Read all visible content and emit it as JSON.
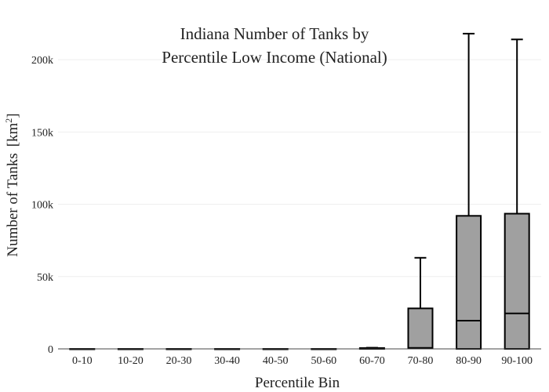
{
  "chart_data": {
    "type": "box",
    "title": "Indiana Number of Tanks by Percentile Low Income (National)",
    "title_lines": [
      "Indiana Number of Tanks by",
      "Percentile Low Income (National)"
    ],
    "xlabel": "Percentile Bin",
    "ylabel_text": "Number of Tanks",
    "ylabel_unit": "[km",
    "ylabel_unit_sup": "2",
    "ylabel_unit_close": "]",
    "ylim": [
      0,
      225000
    ],
    "yticks": [
      0,
      50000,
      100000,
      150000,
      200000
    ],
    "ytick_labels": [
      "0",
      "50k",
      "100k",
      "150k",
      "200k"
    ],
    "grid": true,
    "categories": [
      "0-10",
      "10-20",
      "20-30",
      "30-40",
      "40-50",
      "50-60",
      "60-70",
      "70-80",
      "80-90",
      "90-100"
    ],
    "boxes": [
      {
        "min": 0,
        "q1": 0,
        "median": 0,
        "q3": 0,
        "max": 0
      },
      {
        "min": 0,
        "q1": 0,
        "median": 0,
        "q3": 0,
        "max": 0
      },
      {
        "min": 0,
        "q1": 0,
        "median": 0,
        "q3": 0,
        "max": 0
      },
      {
        "min": 0,
        "q1": 0,
        "median": 0,
        "q3": 0,
        "max": 0
      },
      {
        "min": 0,
        "q1": 0,
        "median": 0,
        "q3": 0,
        "max": 0
      },
      {
        "min": 0,
        "q1": 0,
        "median": 0,
        "q3": 0,
        "max": 0
      },
      {
        "min": 0,
        "q1": 0,
        "median": 200,
        "q3": 600,
        "max": 800
      },
      {
        "min": 0,
        "q1": 500,
        "median": 700,
        "q3": 28000,
        "max": 63000
      },
      {
        "min": 0,
        "q1": 0,
        "median": 19500,
        "q3": 92000,
        "max": 218000
      },
      {
        "min": 0,
        "q1": 0,
        "median": 24500,
        "q3": 93500,
        "max": 214000
      }
    ],
    "box_fill": "#a0a0a0",
    "line_color": "#000000"
  }
}
